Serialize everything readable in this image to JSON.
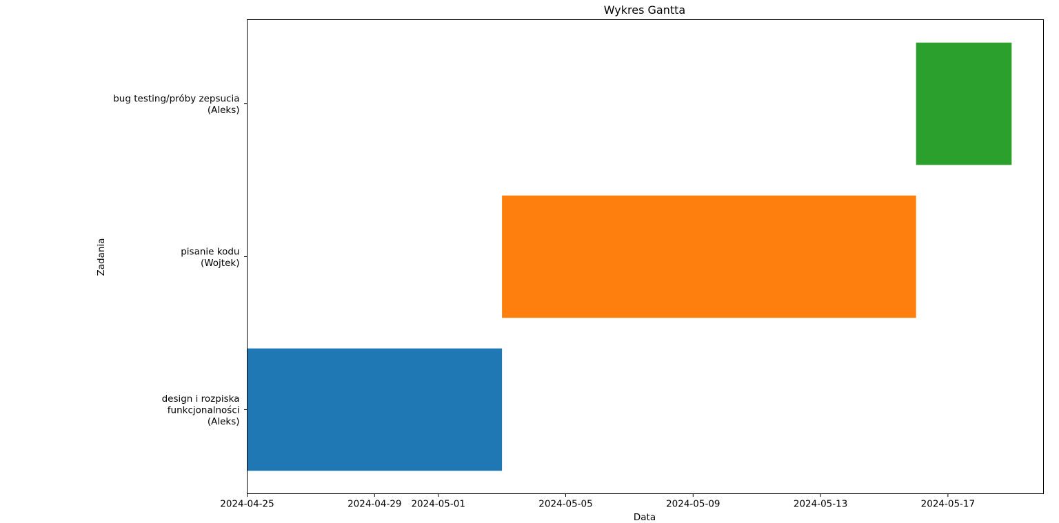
{
  "chart_data": {
    "type": "gantt",
    "title": "Wykres Gantta",
    "xlabel": "Data",
    "ylabel": "Zadania",
    "xlim": [
      "2024-04-25",
      "2024-05-20"
    ],
    "grid": false,
    "legend": "none",
    "x_ticks": [
      "2024-04-25",
      "2024-04-29",
      "2024-05-01",
      "2024-05-05",
      "2024-05-09",
      "2024-05-13",
      "2024-05-17"
    ],
    "tasks": [
      {
        "label_lines": [
          "design i rozpiska",
          "funkcjonalności",
          "(Aleks)"
        ],
        "start": "2024-04-25",
        "end": "2024-05-03",
        "color": "#1f77b4"
      },
      {
        "label_lines": [
          "pisanie kodu",
          "(Wojtek)"
        ],
        "start": "2024-05-03",
        "end": "2024-05-16",
        "color": "#ff7f0e"
      },
      {
        "label_lines": [
          "bug testing/próby zepsucia",
          "(Aleks)"
        ],
        "start": "2024-05-16",
        "end": "2024-05-19",
        "color": "#2ca02c"
      }
    ]
  }
}
